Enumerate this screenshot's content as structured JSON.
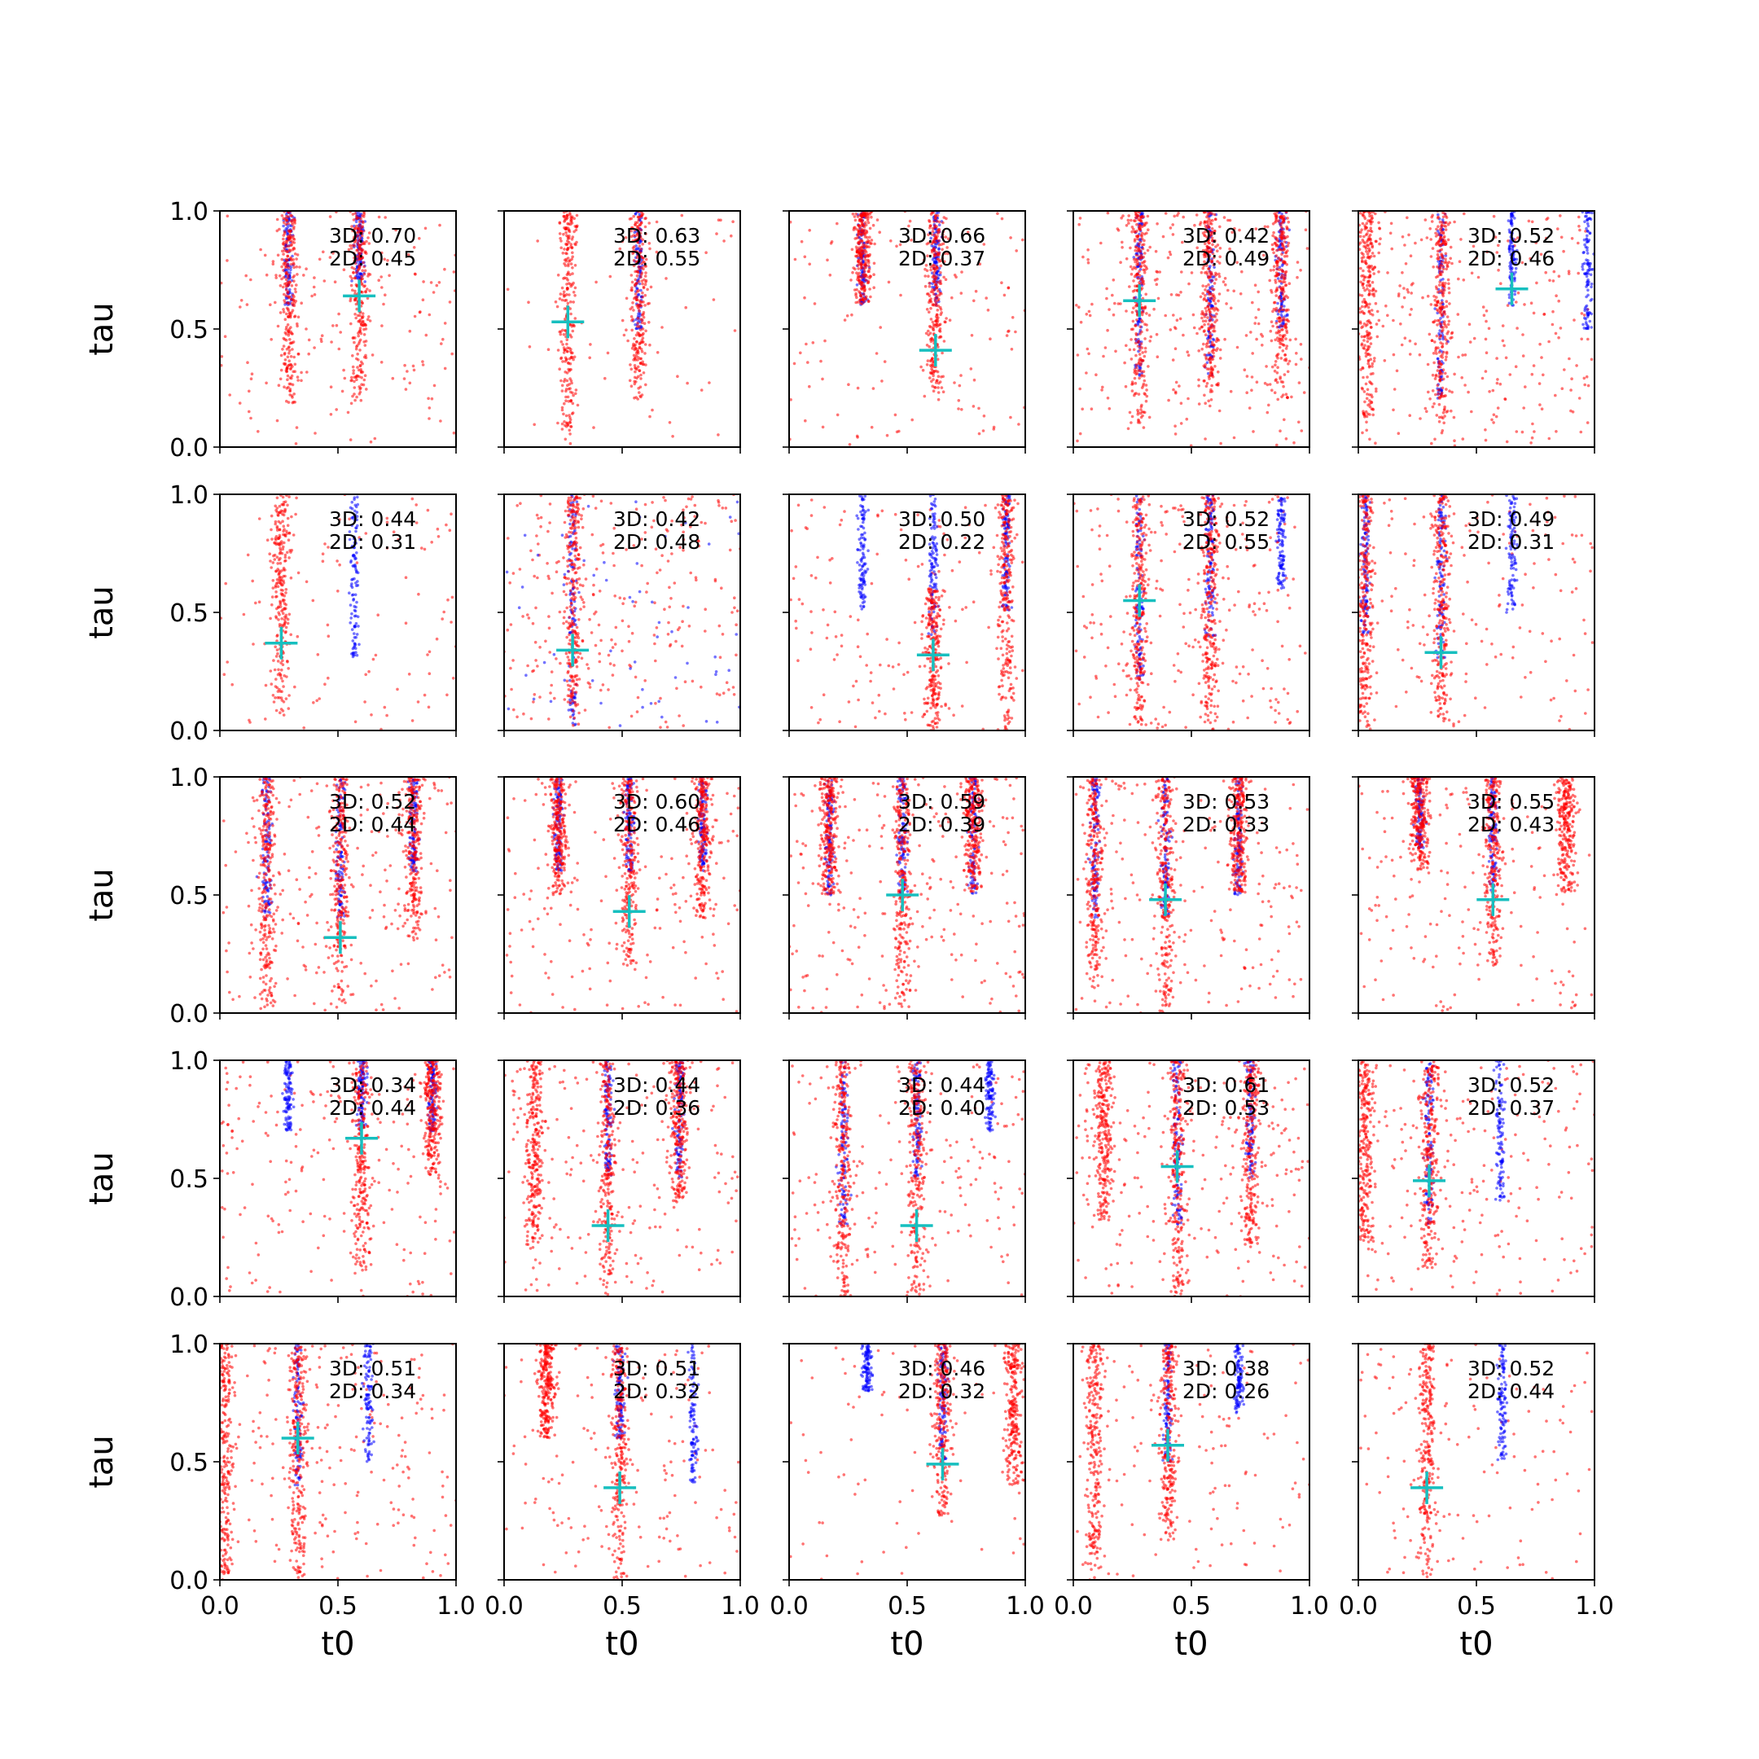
{
  "chart_data": {
    "type": "scatter",
    "layout": "5x5 grid of panels",
    "xlabel": "t0",
    "ylabel": "tau",
    "xlim": [
      0,
      1
    ],
    "ylim": [
      0,
      1
    ],
    "xticks": [
      "0.0",
      "0.5",
      "1.0"
    ],
    "yticks": [
      "0.0",
      "0.5",
      "1.0"
    ],
    "grid": false,
    "colors": {
      "samples_a": "#ff0000",
      "samples_b": "#0000ff",
      "marker": "#17bfbf",
      "axes": "#000000"
    },
    "annotation_prefix": {
      "first": "3D: ",
      "second": "2D: "
    },
    "panels": [
      {
        "row": 0,
        "col": 0,
        "a3d": "0.70",
        "a2d": "0.45",
        "marker": [
          0.59,
          0.64
        ],
        "red_bands": [
          [
            0.29,
            0.18,
            1.0
          ],
          [
            0.59,
            0.18,
            1.0
          ]
        ],
        "blue_bands": [
          [
            0.29,
            0.6,
            1.0
          ],
          [
            0.59,
            0.7,
            1.0
          ]
        ],
        "red_bg": 0.6
      },
      {
        "row": 0,
        "col": 1,
        "a3d": "0.63",
        "a2d": "0.55",
        "marker": [
          0.27,
          0.53
        ],
        "red_bands": [
          [
            0.27,
            0.0,
            1.0
          ],
          [
            0.57,
            0.2,
            1.0
          ]
        ],
        "blue_bands": [
          [
            0.57,
            0.5,
            1.0
          ]
        ],
        "red_bg": 0.2
      },
      {
        "row": 0,
        "col": 2,
        "a3d": "0.66",
        "a2d": "0.37",
        "marker": [
          0.62,
          0.41
        ],
        "red_bands": [
          [
            0.31,
            0.6,
            1.0
          ],
          [
            0.62,
            0.2,
            1.0
          ]
        ],
        "blue_bands": [
          [
            0.31,
            0.6,
            1.0
          ],
          [
            0.62,
            0.6,
            1.0
          ]
        ],
        "red_bg": 0.5
      },
      {
        "row": 0,
        "col": 3,
        "a3d": "0.42",
        "a2d": "0.49",
        "marker": [
          0.28,
          0.62
        ],
        "red_bands": [
          [
            0.28,
            0.1,
            1.0
          ],
          [
            0.58,
            0.2,
            1.0
          ],
          [
            0.88,
            0.2,
            1.0
          ]
        ],
        "blue_bands": [
          [
            0.28,
            0.3,
            1.0
          ],
          [
            0.58,
            0.3,
            1.0
          ],
          [
            0.88,
            0.5,
            1.0
          ]
        ],
        "red_bg": 1.0
      },
      {
        "row": 0,
        "col": 4,
        "a3d": "0.52",
        "a2d": "0.46",
        "marker": [
          0.65,
          0.67
        ],
        "red_bands": [
          [
            0.35,
            0.1,
            1.0
          ],
          [
            0.04,
            0.1,
            1.0
          ]
        ],
        "blue_bands": [
          [
            0.35,
            0.2,
            1.0
          ],
          [
            0.65,
            0.6,
            1.0
          ],
          [
            0.97,
            0.5,
            1.0
          ]
        ],
        "red_bg": 1.0
      },
      {
        "row": 1,
        "col": 0,
        "a3d": "0.44",
        "a2d": "0.31",
        "marker": [
          0.26,
          0.37
        ],
        "red_bands": [
          [
            0.26,
            0.05,
            1.0
          ]
        ],
        "blue_bands": [
          [
            0.57,
            0.3,
            1.0
          ]
        ],
        "red_bg": 0.4
      },
      {
        "row": 1,
        "col": 1,
        "a3d": "0.42",
        "a2d": "0.48",
        "marker": [
          0.29,
          0.34
        ],
        "red_bands": [
          [
            0.29,
            0.0,
            1.0
          ]
        ],
        "blue_bands": [
          [
            0.29,
            0.0,
            1.0
          ]
        ],
        "red_bg": 1.0,
        "blue_bg": 0.5
      },
      {
        "row": 1,
        "col": 2,
        "a3d": "0.50",
        "a2d": "0.22",
        "marker": [
          0.61,
          0.32
        ],
        "red_bands": [
          [
            0.61,
            0.0,
            0.6
          ],
          [
            0.92,
            0.0,
            1.0
          ]
        ],
        "blue_bands": [
          [
            0.31,
            0.5,
            1.0
          ],
          [
            0.61,
            0.4,
            1.0
          ],
          [
            0.92,
            0.5,
            1.0
          ]
        ],
        "red_bg": 0.5
      },
      {
        "row": 1,
        "col": 3,
        "a3d": "0.52",
        "a2d": "0.55",
        "marker": [
          0.28,
          0.55
        ],
        "red_bands": [
          [
            0.28,
            0.0,
            1.0
          ],
          [
            0.58,
            0.0,
            1.0
          ]
        ],
        "blue_bands": [
          [
            0.28,
            0.2,
            1.0
          ],
          [
            0.58,
            0.4,
            1.0
          ],
          [
            0.88,
            0.6,
            1.0
          ]
        ],
        "red_bg": 0.9
      },
      {
        "row": 1,
        "col": 4,
        "a3d": "0.49",
        "a2d": "0.31",
        "marker": [
          0.35,
          0.33
        ],
        "red_bands": [
          [
            0.35,
            0.0,
            1.0
          ],
          [
            0.03,
            0.0,
            1.0
          ]
        ],
        "blue_bands": [
          [
            0.35,
            0.3,
            1.0
          ],
          [
            0.65,
            0.5,
            1.0
          ],
          [
            0.03,
            0.4,
            1.0
          ]
        ],
        "red_bg": 0.6
      },
      {
        "row": 2,
        "col": 0,
        "a3d": "0.52",
        "a2d": "0.44",
        "marker": [
          0.51,
          0.32
        ],
        "red_bands": [
          [
            0.2,
            0.0,
            1.0
          ],
          [
            0.51,
            0.0,
            1.0
          ],
          [
            0.82,
            0.3,
            1.0
          ]
        ],
        "blue_bands": [
          [
            0.2,
            0.4,
            1.0
          ],
          [
            0.51,
            0.4,
            1.0
          ],
          [
            0.82,
            0.6,
            1.0
          ]
        ],
        "red_bg": 0.8
      },
      {
        "row": 2,
        "col": 1,
        "a3d": "0.60",
        "a2d": "0.46",
        "marker": [
          0.53,
          0.43
        ],
        "red_bands": [
          [
            0.23,
            0.5,
            1.0
          ],
          [
            0.53,
            0.2,
            1.0
          ],
          [
            0.84,
            0.4,
            1.0
          ]
        ],
        "blue_bands": [
          [
            0.23,
            0.6,
            1.0
          ],
          [
            0.53,
            0.6,
            1.0
          ],
          [
            0.84,
            0.6,
            1.0
          ]
        ],
        "red_bg": 0.7
      },
      {
        "row": 2,
        "col": 2,
        "a3d": "0.59",
        "a2d": "0.39",
        "marker": [
          0.48,
          0.5
        ],
        "red_bands": [
          [
            0.17,
            0.5,
            1.0
          ],
          [
            0.48,
            0.0,
            1.0
          ],
          [
            0.78,
            0.5,
            1.0
          ]
        ],
        "blue_bands": [
          [
            0.17,
            0.5,
            1.0
          ],
          [
            0.48,
            0.5,
            1.0
          ],
          [
            0.78,
            0.5,
            1.0
          ]
        ],
        "red_bg": 0.9
      },
      {
        "row": 2,
        "col": 3,
        "a3d": "0.53",
        "a2d": "0.33",
        "marker": [
          0.39,
          0.48
        ],
        "red_bands": [
          [
            0.09,
            0.1,
            1.0
          ],
          [
            0.39,
            0.0,
            1.0
          ],
          [
            0.7,
            0.5,
            1.0
          ]
        ],
        "blue_bands": [
          [
            0.09,
            0.4,
            1.0
          ],
          [
            0.39,
            0.4,
            1.0
          ],
          [
            0.7,
            0.5,
            1.0
          ]
        ],
        "red_bg": 0.8
      },
      {
        "row": 2,
        "col": 4,
        "a3d": "0.55",
        "a2d": "0.43",
        "marker": [
          0.57,
          0.48
        ],
        "red_bands": [
          [
            0.57,
            0.2,
            1.0
          ],
          [
            0.88,
            0.5,
            1.0
          ],
          [
            0.26,
            0.6,
            1.0
          ]
        ],
        "blue_bands": [
          [
            0.57,
            0.5,
            1.0
          ],
          [
            0.26,
            0.7,
            1.0
          ]
        ],
        "red_bg": 0.7
      },
      {
        "row": 3,
        "col": 0,
        "a3d": "0.34",
        "a2d": "0.44",
        "marker": [
          0.6,
          0.67
        ],
        "red_bands": [
          [
            0.6,
            0.1,
            1.0
          ],
          [
            0.9,
            0.5,
            1.0
          ]
        ],
        "blue_bands": [
          [
            0.29,
            0.7,
            1.0
          ],
          [
            0.6,
            0.7,
            1.0
          ],
          [
            0.9,
            0.7,
            1.0
          ]
        ],
        "red_bg": 0.8
      },
      {
        "row": 3,
        "col": 1,
        "a3d": "0.44",
        "a2d": "0.36",
        "marker": [
          0.44,
          0.3
        ],
        "red_bands": [
          [
            0.13,
            0.2,
            1.0
          ],
          [
            0.44,
            0.0,
            1.0
          ],
          [
            0.74,
            0.4,
            1.0
          ]
        ],
        "blue_bands": [
          [
            0.44,
            0.5,
            1.0
          ],
          [
            0.74,
            0.5,
            1.0
          ]
        ],
        "red_bg": 0.8
      },
      {
        "row": 3,
        "col": 2,
        "a3d": "0.44",
        "a2d": "0.40",
        "marker": [
          0.54,
          0.3
        ],
        "red_bands": [
          [
            0.23,
            0.0,
            1.0
          ],
          [
            0.54,
            0.0,
            1.0
          ]
        ],
        "blue_bands": [
          [
            0.23,
            0.3,
            1.0
          ],
          [
            0.54,
            0.5,
            1.0
          ],
          [
            0.85,
            0.7,
            1.0
          ]
        ],
        "red_bg": 0.7
      },
      {
        "row": 3,
        "col": 3,
        "a3d": "0.61",
        "a2d": "0.53",
        "marker": [
          0.44,
          0.55
        ],
        "red_bands": [
          [
            0.44,
            0.0,
            1.0
          ],
          [
            0.75,
            0.2,
            1.0
          ],
          [
            0.13,
            0.3,
            1.0
          ]
        ],
        "blue_bands": [
          [
            0.44,
            0.3,
            1.0
          ],
          [
            0.75,
            0.5,
            1.0
          ]
        ],
        "red_bg": 0.9
      },
      {
        "row": 3,
        "col": 4,
        "a3d": "0.52",
        "a2d": "0.37",
        "marker": [
          0.3,
          0.49
        ],
        "red_bands": [
          [
            0.3,
            0.1,
            1.0
          ],
          [
            0.03,
            0.2,
            1.0
          ]
        ],
        "blue_bands": [
          [
            0.3,
            0.3,
            1.0
          ],
          [
            0.6,
            0.4,
            1.0
          ]
        ],
        "red_bg": 0.8
      },
      {
        "row": 4,
        "col": 0,
        "a3d": "0.51",
        "a2d": "0.34",
        "marker": [
          0.33,
          0.6
        ],
        "red_bands": [
          [
            0.02,
            0.0,
            1.0
          ],
          [
            0.33,
            0.0,
            1.0
          ]
        ],
        "blue_bands": [
          [
            0.33,
            0.4,
            1.0
          ],
          [
            0.63,
            0.5,
            1.0
          ]
        ],
        "red_bg": 0.8
      },
      {
        "row": 4,
        "col": 1,
        "a3d": "0.51",
        "a2d": "0.32",
        "marker": [
          0.49,
          0.39
        ],
        "red_bands": [
          [
            0.49,
            0.0,
            1.0
          ],
          [
            0.18,
            0.6,
            1.0
          ]
        ],
        "blue_bands": [
          [
            0.49,
            0.6,
            1.0
          ],
          [
            0.8,
            0.4,
            1.0
          ]
        ],
        "red_bg": 0.6
      },
      {
        "row": 4,
        "col": 2,
        "a3d": "0.46",
        "a2d": "0.32",
        "marker": [
          0.65,
          0.49
        ],
        "red_bands": [
          [
            0.65,
            0.25,
            1.0
          ],
          [
            0.95,
            0.4,
            1.0
          ]
        ],
        "blue_bands": [
          [
            0.65,
            0.5,
            1.0
          ],
          [
            0.33,
            0.8,
            1.0
          ]
        ],
        "red_bg": 0.3
      },
      {
        "row": 4,
        "col": 3,
        "a3d": "0.38",
        "a2d": "0.26",
        "marker": [
          0.4,
          0.57
        ],
        "red_bands": [
          [
            0.09,
            0.0,
            1.0
          ],
          [
            0.4,
            0.15,
            1.0
          ]
        ],
        "blue_bands": [
          [
            0.4,
            0.5,
            1.0
          ],
          [
            0.7,
            0.7,
            1.0
          ]
        ],
        "red_bg": 0.5
      },
      {
        "row": 4,
        "col": 4,
        "a3d": "0.52",
        "a2d": "0.44",
        "marker": [
          0.29,
          0.39
        ],
        "red_bands": [
          [
            0.29,
            0.0,
            1.0
          ]
        ],
        "blue_bands": [
          [
            0.61,
            0.5,
            1.0
          ]
        ],
        "red_bg": 0.5
      }
    ]
  }
}
